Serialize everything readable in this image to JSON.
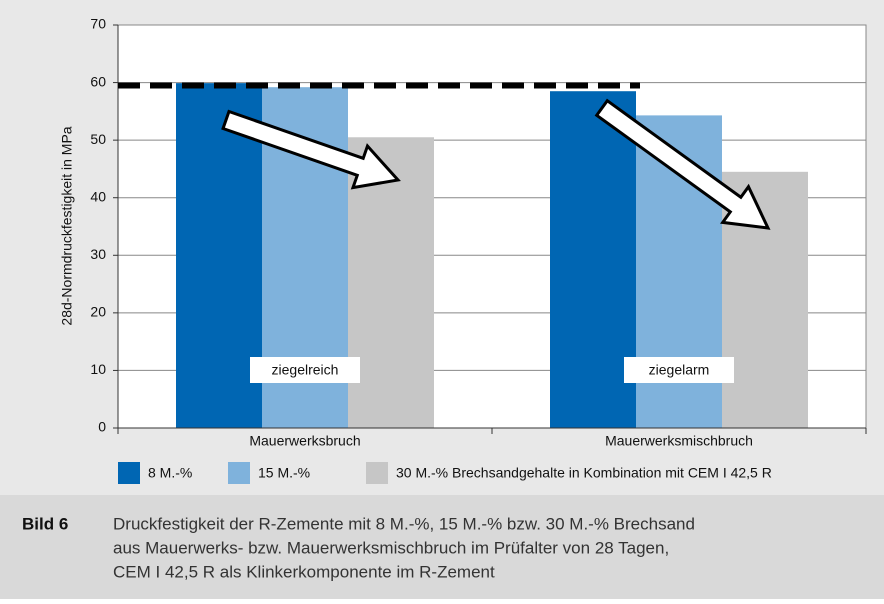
{
  "chart_data": {
    "type": "bar",
    "y_label": "28d-Normdruckfestigkeit in MPa",
    "categories": [
      "Mauerwerksbruch",
      "Mauerwerksmischbruch"
    ],
    "series": [
      {
        "name": "8 M.-%",
        "color": "#0066b3",
        "values": [
          59.9,
          58.5
        ]
      },
      {
        "name": "15 M.-%",
        "color": "#7fb2dc",
        "values": [
          59.2,
          54.3
        ]
      },
      {
        "name": "30 M.-% Brechsandgehalte in Kombination mit CEM I 42,5 R",
        "color": "#c6c6c6",
        "values": [
          50.5,
          44.5
        ]
      }
    ],
    "reference_line": 59.5,
    "annotations": [
      "ziegelreich",
      "ziegelarm"
    ],
    "ylim": [
      0,
      70
    ],
    "yticks": [
      0,
      10,
      20,
      30,
      40,
      50,
      60,
      70
    ],
    "grid": true
  },
  "caption": {
    "label": "Bild 6",
    "lines": [
      "Druckfestigkeit der R-Zemente mit 8 M.-%, 15 M.-% bzw. 30 M.-% Brechsand",
      "aus Mauerwerks- bzw. Mauerwerksmischbruch im Prüfalter von 28 Tagen,",
      "CEM I 42,5 R als Klinkerkomponente im R-Zement"
    ]
  }
}
